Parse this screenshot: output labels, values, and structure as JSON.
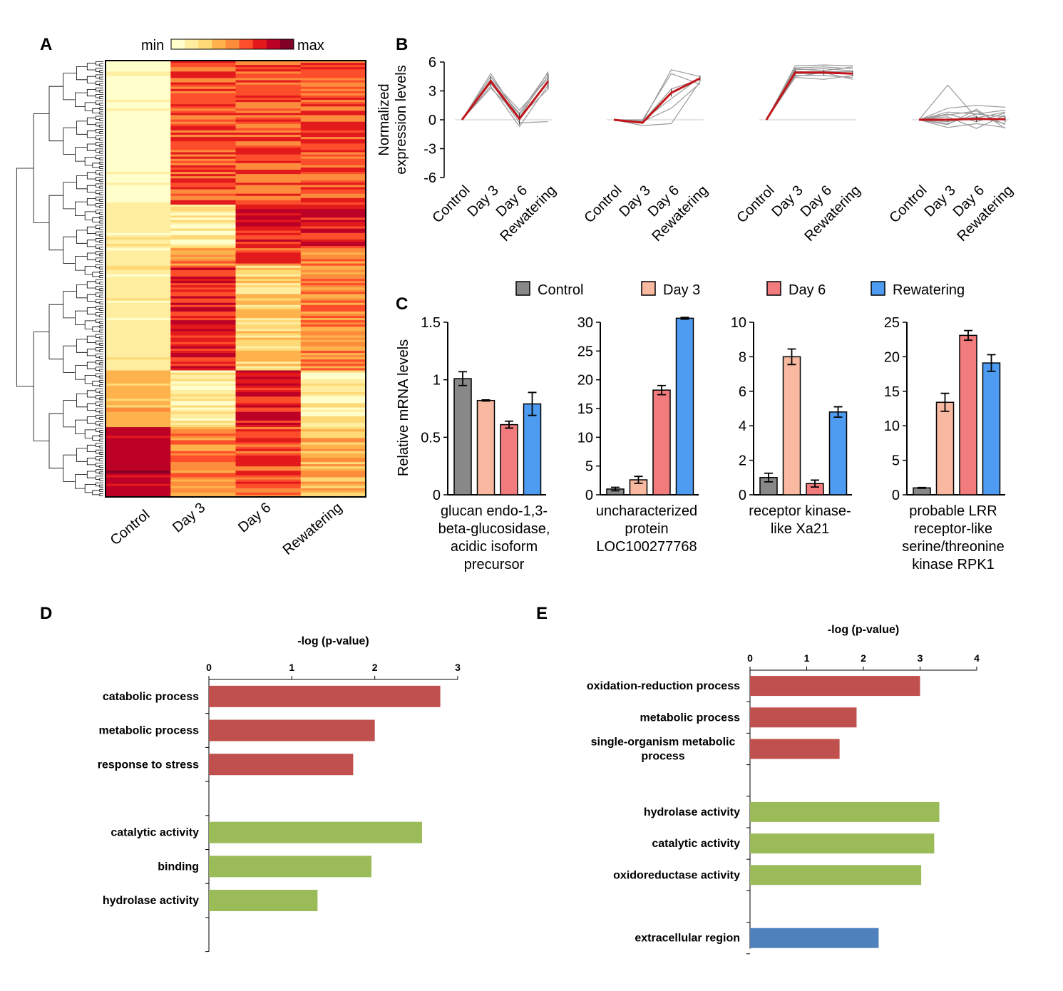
{
  "panels": {
    "a": "A",
    "b": "B",
    "c": "C",
    "d": "D",
    "e": "E"
  },
  "colors": {
    "heat": [
      "#ffffcc",
      "#ffeda0",
      "#fed976",
      "#feb24c",
      "#fd8d3c",
      "#fc4e2a",
      "#e31a1c",
      "#bd0026",
      "#800026"
    ],
    "bars": {
      "control": "#888888",
      "day3": "#f9b9a0",
      "day6": "#f27b7d",
      "rewatering": "#4d9cf2"
    },
    "go": {
      "process": "#c0504d",
      "function": "#9bbb59",
      "component": "#4f81bd"
    },
    "profile_mean": "#c0161b",
    "profile_gene": "#9a9a9a"
  },
  "chart_data": [
    {
      "id": "A",
      "type": "heatmap",
      "title": "",
      "scale_min_label": "min",
      "scale_max_label": "max",
      "columns": [
        "Control",
        "Day 3",
        "Day 6",
        "Rewatering"
      ],
      "row_blocks": [
        {
          "rows": 66,
          "values": [
            0,
            5,
            5,
            5
          ]
        },
        {
          "rows": 20,
          "values": [
            1,
            1,
            6,
            6
          ]
        },
        {
          "rows": 8,
          "values": [
            1,
            4,
            5,
            4
          ]
        },
        {
          "rows": 48,
          "values": [
            1,
            6,
            2,
            4
          ]
        },
        {
          "rows": 26,
          "values": [
            3,
            1,
            6,
            1
          ]
        },
        {
          "rows": 32,
          "values": [
            7,
            4,
            5,
            3
          ]
        }
      ]
    },
    {
      "id": "B",
      "type": "line",
      "ylabel": "Normalized\nexpression levels",
      "categories": [
        "Control",
        "Day 3",
        "Day 6",
        "Rewatering"
      ],
      "yticks": [
        "6",
        "3",
        "0",
        "-3",
        "-6"
      ],
      "ylim": [
        -6,
        6
      ],
      "profiles": [
        {
          "mean": [
            0,
            4.0,
            0.1,
            4.0
          ],
          "sd": [
            0,
            0.5,
            0.6,
            0.8
          ],
          "genes": [
            [
              0,
              4.8,
              0.2,
              5.0
            ],
            [
              0,
              4.5,
              0.5,
              4.6
            ],
            [
              0,
              4.2,
              1.0,
              4.3
            ],
            [
              0,
              3.8,
              0.0,
              4.1
            ],
            [
              0,
              3.5,
              -0.7,
              3.6
            ],
            [
              0,
              3.3,
              0.3,
              3.2
            ],
            [
              0,
              4.0,
              0.7,
              4.9
            ],
            [
              0,
              3.9,
              -0.3,
              -0.2
            ]
          ]
        },
        {
          "mean": [
            0,
            -0.3,
            2.8,
            4.3
          ],
          "sd": [
            0,
            0.1,
            0.4,
            0.3
          ],
          "genes": [
            [
              0,
              -0.2,
              5.2,
              4.5
            ],
            [
              0,
              0.0,
              4.8,
              3.7
            ],
            [
              0,
              -0.2,
              3.2,
              4.2
            ],
            [
              0,
              -0.1,
              2.2,
              4.4
            ],
            [
              0,
              -0.2,
              1.2,
              3.8
            ],
            [
              0,
              -0.6,
              -0.4,
              4.0
            ]
          ]
        },
        {
          "mean": [
            0,
            4.9,
            4.9,
            4.8
          ],
          "sd": [
            0,
            0.3,
            0.3,
            0.3
          ],
          "genes": [
            [
              0,
              5.6,
              5.7,
              5.6
            ],
            [
              0,
              5.4,
              5.5,
              5.3
            ],
            [
              0,
              5.2,
              5.3,
              5.1
            ],
            [
              0,
              5.0,
              5.0,
              5.0
            ],
            [
              0,
              4.8,
              4.8,
              4.8
            ],
            [
              0,
              4.6,
              4.6,
              4.4
            ],
            [
              0,
              4.4,
              4.2,
              4.6
            ],
            [
              0,
              5.3,
              5.1,
              5.5
            ],
            [
              0,
              4.5,
              4.9,
              4.2
            ]
          ]
        },
        {
          "mean": [
            0,
            0.0,
            0.1,
            0.05
          ],
          "sd": [
            0,
            0.2,
            0.3,
            0.3
          ],
          "genes": [
            [
              0,
              3.6,
              0.2,
              0.8
            ],
            [
              0,
              1.2,
              1.5,
              1.3
            ],
            [
              0,
              0.8,
              0.6,
              1.0
            ],
            [
              0,
              0.5,
              0.9,
              -0.5
            ],
            [
              0,
              -0.4,
              0.6,
              0.3
            ],
            [
              0,
              -0.8,
              -0.4,
              -0.8
            ],
            [
              0,
              0.3,
              -0.9,
              0.5
            ],
            [
              0,
              -0.2,
              0.3,
              -0.4
            ],
            [
              0,
              0.6,
              -0.2,
              0.7
            ],
            [
              0,
              -0.5,
              1.1,
              -0.9
            ]
          ]
        }
      ]
    },
    {
      "id": "C",
      "type": "bar",
      "ylabel": "Relative mRNA levels",
      "legend": [
        "Control",
        "Day 3",
        "Day 6",
        "Rewatering"
      ],
      "legend_position": "top",
      "plots": [
        {
          "title": "glucan endo-1,3-\nbeta-glucosidase,\nacidic isoform\nprecursor",
          "ylim": [
            0,
            1.5
          ],
          "ticks": [
            "0",
            "0.5",
            "1",
            "1.5"
          ],
          "values": [
            1.01,
            0.82,
            0.61,
            0.79
          ],
          "errors": [
            0.06,
            0.005,
            0.03,
            0.1
          ]
        },
        {
          "title": "uncharacterized\nprotein\nLOC100277768",
          "ylim": [
            0,
            30
          ],
          "ticks": [
            "0",
            "5",
            "10",
            "15",
            "20",
            "25",
            "30"
          ],
          "values": [
            1.0,
            2.6,
            18.2,
            30.7
          ],
          "errors": [
            0.3,
            0.6,
            0.8,
            0.15
          ]
        },
        {
          "title": "receptor kinase-\nlike  Xa21",
          "ylim": [
            0,
            10
          ],
          "ticks": [
            "0",
            "2",
            "4",
            "6",
            "8",
            "10"
          ],
          "values": [
            1.0,
            8.0,
            0.65,
            4.8
          ],
          "errors": [
            0.25,
            0.45,
            0.2,
            0.3
          ]
        },
        {
          "title": "probable LRR\nreceptor-like\nserine/threonine\nkinase RPK1",
          "ylim": [
            0,
            25
          ],
          "ticks": [
            "0",
            "5",
            "10",
            "15",
            "20",
            "25"
          ],
          "values": [
            1.0,
            13.4,
            23.1,
            19.1
          ],
          "errors": [
            0.05,
            1.3,
            0.7,
            1.2
          ]
        }
      ]
    },
    {
      "id": "D",
      "type": "bar",
      "orientation": "horizontal",
      "xlabel": "-log (p-value)",
      "xlim": [
        0,
        3
      ],
      "ticks": [
        "0",
        "1",
        "2",
        "3"
      ],
      "rows": [
        {
          "label": "catabolic process",
          "value": 2.79,
          "group": "process"
        },
        {
          "label": "metabolic process",
          "value": 2.0,
          "group": "process"
        },
        {
          "label": "response to stress",
          "value": 1.74,
          "group": "process"
        },
        null,
        {
          "label": "catalytic activity",
          "value": 2.57,
          "group": "function"
        },
        {
          "label": "binding",
          "value": 1.96,
          "group": "function"
        },
        {
          "label": "hydrolase activity",
          "value": 1.31,
          "group": "function"
        },
        null
      ]
    },
    {
      "id": "E",
      "type": "bar",
      "orientation": "horizontal",
      "xlabel": "-log (p-value)",
      "xlim": [
        0,
        4
      ],
      "ticks": [
        "0",
        "1",
        "2",
        "3",
        "4"
      ],
      "rows": [
        {
          "label": "oxidation-reduction process",
          "value": 3.0,
          "group": "process"
        },
        {
          "label": "metabolic process",
          "value": 1.88,
          "group": "process"
        },
        {
          "label": "single-organism metabolic\nprocess",
          "value": 1.58,
          "group": "process"
        },
        null,
        {
          "label": "hydrolase activity",
          "value": 3.34,
          "group": "function"
        },
        {
          "label": "catalytic activity",
          "value": 3.25,
          "group": "function"
        },
        {
          "label": "oxidoreductase activity",
          "value": 3.02,
          "group": "function"
        },
        null,
        {
          "label": "extracellular region",
          "value": 2.27,
          "group": "component"
        }
      ]
    }
  ]
}
